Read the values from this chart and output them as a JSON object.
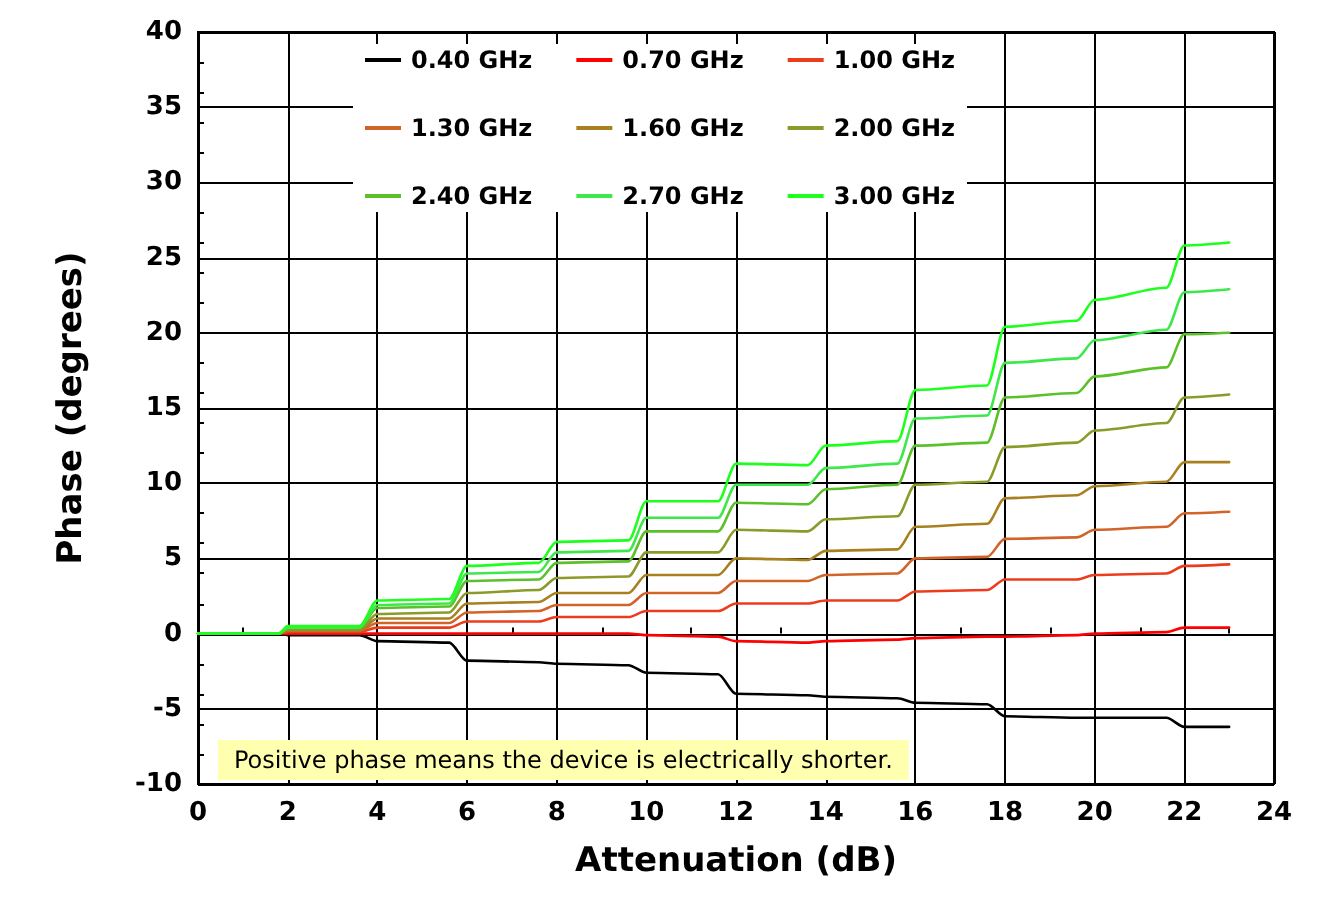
{
  "chart_data": {
    "type": "line",
    "xlabel": "Attenuation (dB)",
    "ylabel": "Phase (degrees)",
    "x": [
      0,
      1.8,
      2,
      3.6,
      4,
      5.6,
      6,
      7.6,
      8,
      9.6,
      10,
      11.6,
      12,
      13.6,
      14,
      15.6,
      16,
      17.6,
      18,
      19.6,
      20,
      21.6,
      22,
      23
    ],
    "series": [
      {
        "name": "0.40 GHz",
        "color": "#000000",
        "values": [
          0,
          0,
          -0.1,
          -0.1,
          -0.5,
          -0.6,
          -1.8,
          -1.9,
          -2.0,
          -2.1,
          -2.6,
          -2.7,
          -4.0,
          -4.1,
          -4.2,
          -4.3,
          -4.6,
          -4.7,
          -5.5,
          -5.6,
          -5.6,
          -5.6,
          -6.2,
          -6.2
        ]
      },
      {
        "name": "0.70 GHz",
        "color": "#ff0000",
        "values": [
          0,
          0,
          0,
          0,
          0,
          0,
          0,
          0,
          0,
          0,
          -0.1,
          -0.2,
          -0.5,
          -0.6,
          -0.5,
          -0.4,
          -0.3,
          -0.2,
          -0.2,
          -0.1,
          0,
          0.1,
          0.4,
          0.4
        ]
      },
      {
        "name": "1.00 GHz",
        "color": "#ec3c1c",
        "values": [
          0,
          0,
          0.1,
          0.1,
          0.4,
          0.4,
          0.8,
          0.8,
          1.1,
          1.1,
          1.5,
          1.5,
          2.0,
          2.0,
          2.2,
          2.2,
          2.8,
          2.9,
          3.6,
          3.6,
          3.9,
          4.0,
          4.5,
          4.6
        ]
      },
      {
        "name": "1.30 GHz",
        "color": "#d2642a",
        "values": [
          0,
          0,
          0.2,
          0.2,
          0.7,
          0.7,
          1.4,
          1.5,
          1.9,
          1.9,
          2.7,
          2.7,
          3.5,
          3.5,
          3.9,
          4.0,
          5.0,
          5.1,
          6.3,
          6.4,
          6.9,
          7.1,
          8.0,
          8.1
        ]
      },
      {
        "name": "1.60 GHz",
        "color": "#a88020",
        "values": [
          0,
          0,
          0.2,
          0.2,
          1.0,
          1.0,
          2.0,
          2.1,
          2.7,
          2.7,
          3.9,
          3.9,
          5.0,
          4.9,
          5.5,
          5.6,
          7.1,
          7.3,
          9.0,
          9.2,
          9.8,
          10.1,
          11.4,
          11.4
        ]
      },
      {
        "name": "2.00 GHz",
        "color": "#8c9a2a",
        "values": [
          0,
          0,
          0.3,
          0.3,
          1.3,
          1.4,
          2.7,
          2.9,
          3.7,
          3.8,
          5.4,
          5.4,
          6.9,
          6.8,
          7.6,
          7.8,
          9.9,
          10.1,
          12.4,
          12.7,
          13.5,
          14.0,
          15.7,
          15.9
        ]
      },
      {
        "name": "2.40 GHz",
        "color": "#5cc02a",
        "values": [
          0,
          0,
          0.4,
          0.4,
          1.7,
          1.8,
          3.5,
          3.6,
          4.7,
          4.8,
          6.8,
          6.8,
          8.7,
          8.6,
          9.6,
          9.9,
          12.5,
          12.7,
          15.7,
          16.0,
          17.1,
          17.7,
          19.9,
          20.0
        ]
      },
      {
        "name": "2.70 GHz",
        "color": "#3ee84a",
        "values": [
          0,
          0,
          0.4,
          0.4,
          1.9,
          2.0,
          4.0,
          4.1,
          5.4,
          5.5,
          7.7,
          7.7,
          9.9,
          9.9,
          11.0,
          11.3,
          14.3,
          14.5,
          18.0,
          18.3,
          19.5,
          20.2,
          22.7,
          22.9
        ]
      },
      {
        "name": "3.00 GHz",
        "color": "#1eff1e",
        "values": [
          0,
          0,
          0.5,
          0.5,
          2.2,
          2.3,
          4.5,
          4.7,
          6.1,
          6.2,
          8.8,
          8.8,
          11.3,
          11.2,
          12.5,
          12.8,
          16.2,
          16.5,
          20.4,
          20.8,
          22.2,
          23.0,
          25.8,
          26.0
        ]
      }
    ],
    "xlim": [
      0,
      24
    ],
    "xticks": [
      0,
      2,
      4,
      6,
      8,
      10,
      12,
      14,
      16,
      18,
      20,
      22,
      24
    ],
    "ylim": [
      -10,
      40
    ],
    "yticks": [
      -10,
      -5,
      0,
      5,
      10,
      15,
      20,
      25,
      30,
      35,
      40
    ],
    "grid": true,
    "legend": "top",
    "marker": "none",
    "line_style": "solid",
    "annotations": [
      "Positive phase means the device is electrically shorter."
    ]
  }
}
